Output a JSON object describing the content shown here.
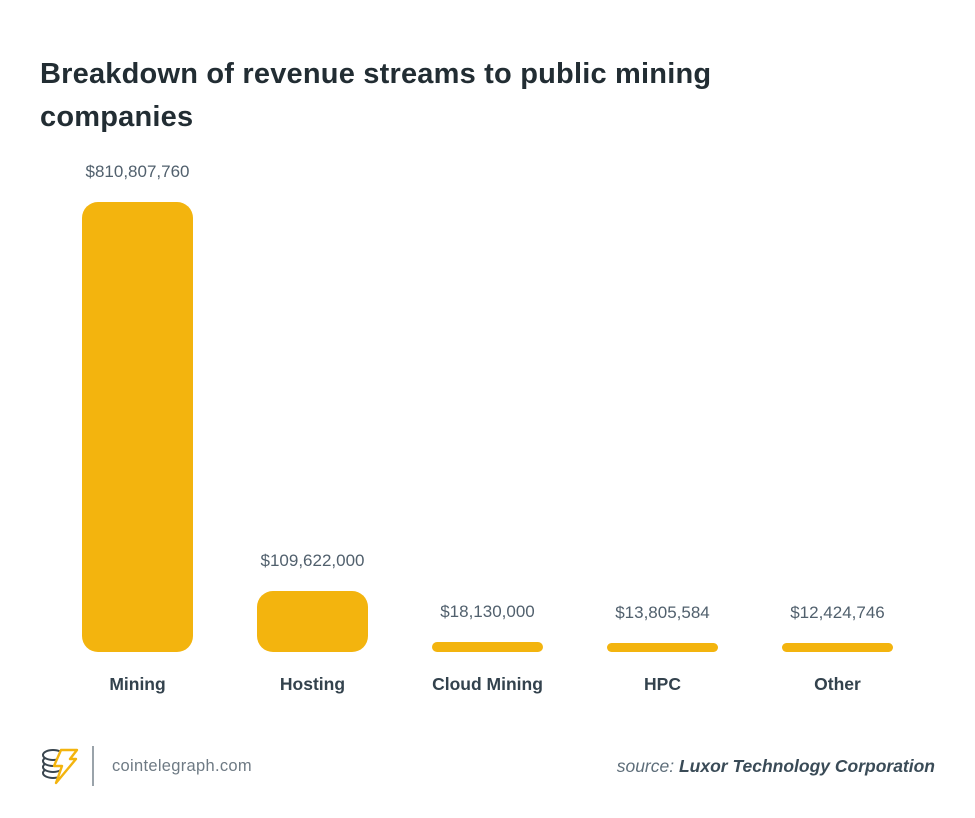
{
  "title": "Breakdown of revenue streams to public mining companies",
  "chart_data": {
    "type": "bar",
    "title": "Breakdown of revenue streams to public mining companies",
    "categories": [
      "Mining",
      "Hosting",
      "Cloud Mining",
      "HPC",
      "Other"
    ],
    "values": [
      810807760,
      109622000,
      18130000,
      13805584,
      12424746
    ],
    "value_labels": [
      "$810,807,760",
      "$109,622,000",
      "$18,130,000",
      "$13,805,584",
      "$12,424,746"
    ],
    "xlabel": "",
    "ylabel": "",
    "ylim": [
      0,
      810807760
    ],
    "grid": false,
    "legend": false,
    "bar_color": "#F3B40E"
  },
  "footer": {
    "logo_icon": "cointelegraph-coins-lightning-logo",
    "site": "cointelegraph.com",
    "source_prefix": "source:",
    "source_name": "Luxor Technology Corporation"
  },
  "colors": {
    "bar": "#F3B40E",
    "title_text": "#222D33",
    "value_text": "#51606D",
    "category_text": "#33424D",
    "site_text": "#6E7A84",
    "source_text": "#3A4B57",
    "background": "#FFFFFF"
  }
}
